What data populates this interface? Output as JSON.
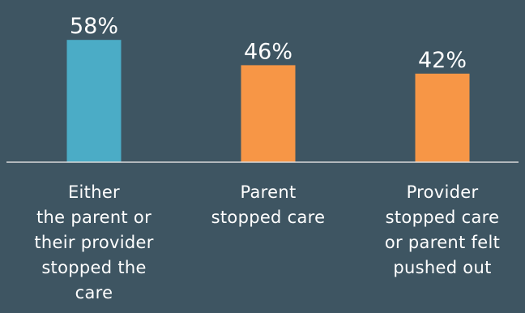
{
  "chart_data": {
    "type": "bar",
    "categories": [
      [
        "Either",
        "the parent or",
        "their provider",
        "stopped the",
        "care"
      ],
      [
        "Parent",
        "stopped care"
      ],
      [
        "Provider",
        "stopped care",
        "or parent felt",
        "pushed out"
      ]
    ],
    "values": [
      58,
      46,
      42
    ],
    "value_labels": [
      "58%",
      "46%",
      "42%"
    ],
    "colors": [
      "#4bacc6",
      "#f79646",
      "#f79646"
    ],
    "title": "",
    "xlabel": "",
    "ylabel": "",
    "ylim": [
      0,
      60
    ],
    "grid": false,
    "legend": "none"
  },
  "colors": {
    "background": "#3e5562",
    "axis": "#d9d9d9",
    "text": "#ffffff"
  }
}
